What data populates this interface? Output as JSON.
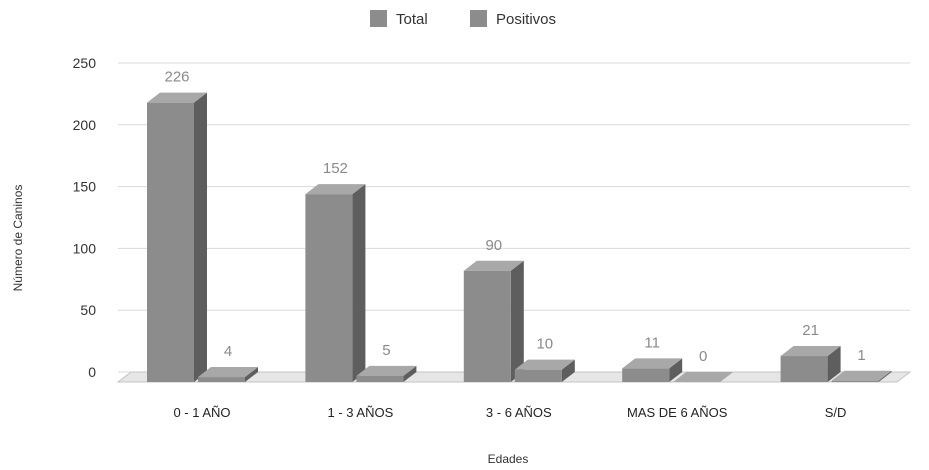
{
  "chart_data": {
    "type": "bar",
    "title": "",
    "xlabel": "Edades",
    "ylabel": "Número de Caninos",
    "categories": [
      "0 - 1 AÑO",
      "1 - 3 AÑOS",
      "3 - 6 AÑOS",
      "MAS DE 6 AÑOS",
      "S/D"
    ],
    "series": [
      {
        "name": "Total",
        "values": [
          226,
          152,
          90,
          11,
          21
        ],
        "labels": [
          "226",
          "152",
          "90",
          "11",
          "21"
        ],
        "color": "#8c8c8c"
      },
      {
        "name": "Positivos",
        "values": [
          4,
          5,
          10,
          0,
          1
        ],
        "labels": [
          "4",
          "5",
          "10",
          "0",
          "1"
        ],
        "color": "#8c8c8c"
      }
    ],
    "ylim": [
      0,
      250
    ],
    "yticks": [
      "0",
      "50",
      "100",
      "150",
      "200",
      "250"
    ],
    "grid": true,
    "legend": "top-center",
    "style": "3d"
  }
}
